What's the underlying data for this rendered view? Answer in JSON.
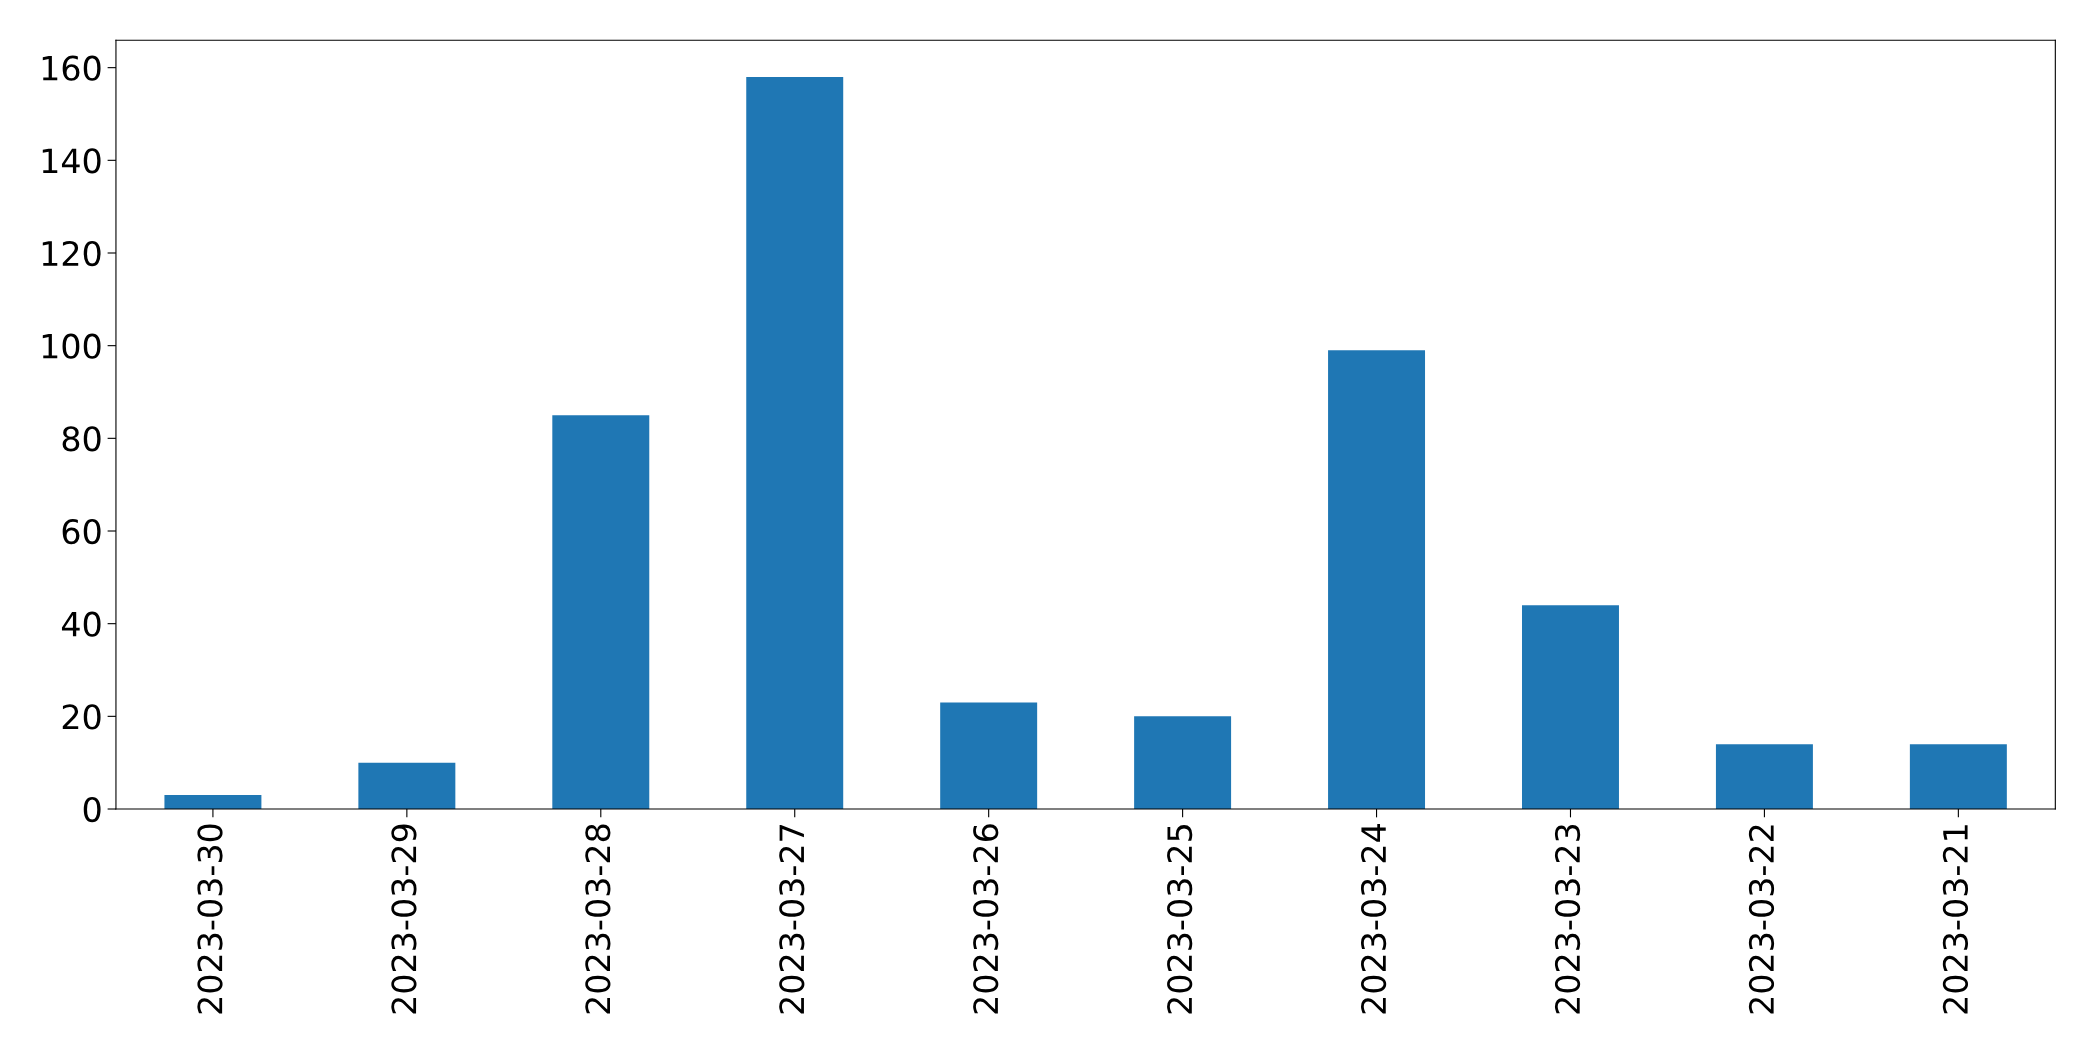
{
  "chart_data": {
    "type": "bar",
    "categories": [
      "2023-03-30",
      "2023-03-29",
      "2023-03-28",
      "2023-03-27",
      "2023-03-26",
      "2023-03-25",
      "2023-03-24",
      "2023-03-23",
      "2023-03-22",
      "2023-03-21"
    ],
    "values": [
      3,
      10,
      85,
      158,
      23,
      20,
      99,
      44,
      14,
      14
    ],
    "color": "#1f77b4",
    "ylim": [
      0,
      165.9
    ],
    "yticks": [
      0,
      20,
      40,
      60,
      80,
      100,
      120,
      140,
      160
    ],
    "grid": false,
    "legend": false
  }
}
